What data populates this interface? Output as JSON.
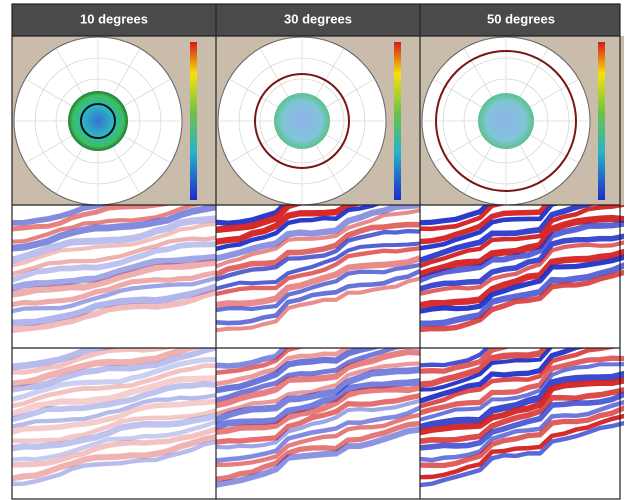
{
  "columns": [
    {
      "header": "10 degrees"
    },
    {
      "header": "30 degrees"
    },
    {
      "header": "50 degrees"
    }
  ]
}
